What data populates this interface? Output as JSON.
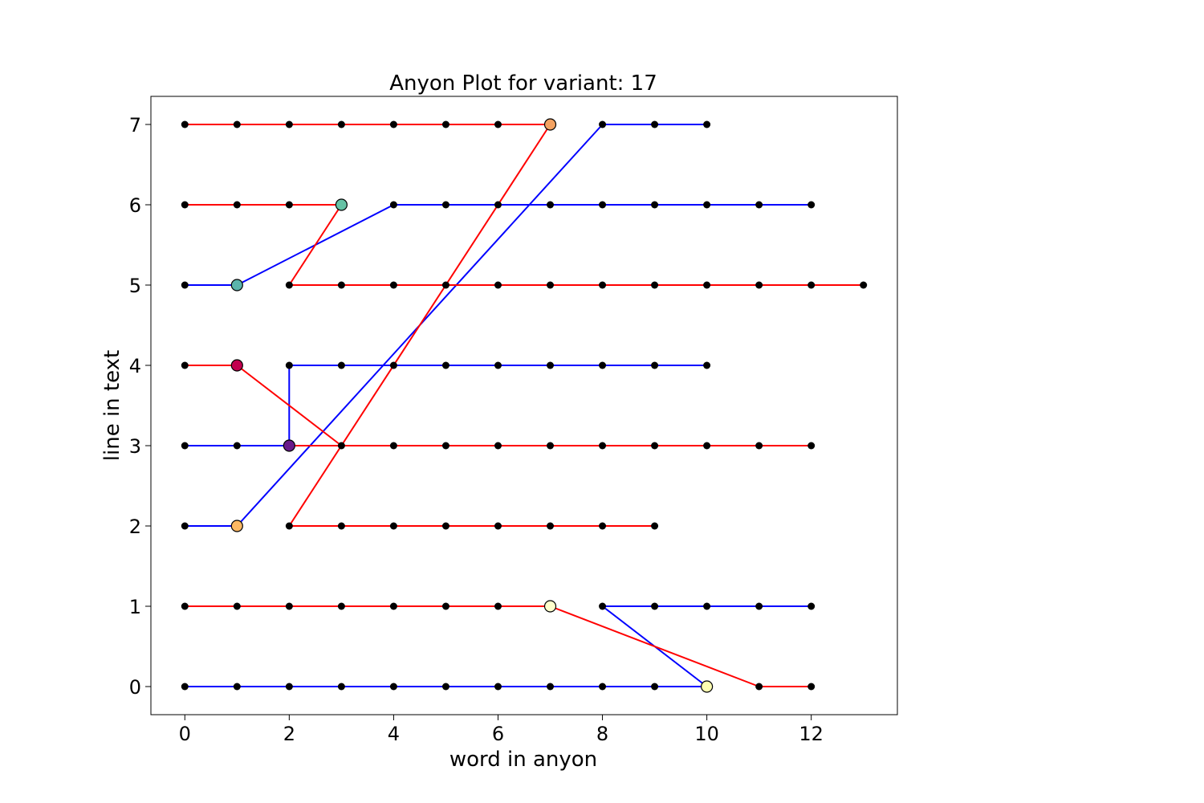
{
  "chart_data": {
    "type": "line",
    "title": "Anyon Plot for variant: 17",
    "xlabel": "word in anyon",
    "ylabel": "line in text",
    "xlim": [
      -0.65,
      13.65
    ],
    "ylim": [
      7.35,
      -0.35
    ],
    "y_inverted": true,
    "grid": false,
    "x_ticks": [
      0,
      2,
      4,
      6,
      8,
      10,
      12
    ],
    "y_ticks": [
      0,
      1,
      2,
      3,
      4,
      5,
      6,
      7
    ],
    "colors": {
      "blue": "#0000ff",
      "red": "#ff0000",
      "point": "#000000",
      "frame": "#000000"
    },
    "series": [
      {
        "color": "blue",
        "points": [
          [
            0,
            0
          ],
          [
            1,
            0
          ],
          [
            2,
            0
          ],
          [
            3,
            0
          ],
          [
            4,
            0
          ],
          [
            5,
            0
          ],
          [
            6,
            0
          ],
          [
            7,
            0
          ],
          [
            8,
            0
          ],
          [
            9,
            0
          ],
          [
            10,
            0
          ],
          [
            8,
            1
          ],
          [
            9,
            1
          ],
          [
            10,
            1
          ],
          [
            11,
            1
          ],
          [
            12,
            1
          ]
        ]
      },
      {
        "color": "red",
        "points": [
          [
            0,
            1
          ],
          [
            1,
            1
          ],
          [
            2,
            1
          ],
          [
            3,
            1
          ],
          [
            4,
            1
          ],
          [
            5,
            1
          ],
          [
            6,
            1
          ],
          [
            7,
            1
          ],
          [
            11,
            0
          ],
          [
            12,
            0
          ]
        ]
      },
      {
        "color": "blue",
        "points": [
          [
            0,
            2
          ],
          [
            1,
            2
          ],
          [
            8,
            7
          ],
          [
            9,
            7
          ],
          [
            10,
            7
          ]
        ]
      },
      {
        "color": "red",
        "points": [
          [
            2,
            2
          ],
          [
            3,
            2
          ],
          [
            4,
            2
          ],
          [
            5,
            2
          ],
          [
            6,
            2
          ],
          [
            7,
            2
          ],
          [
            8,
            2
          ],
          [
            9,
            2
          ]
        ]
      },
      {
        "color": "red",
        "points": [
          [
            2,
            2
          ],
          [
            7,
            7
          ]
        ]
      },
      {
        "color": "blue",
        "points": [
          [
            0,
            3
          ],
          [
            1,
            3
          ],
          [
            2,
            3
          ],
          [
            2,
            4
          ],
          [
            3,
            4
          ],
          [
            4,
            4
          ],
          [
            5,
            4
          ],
          [
            6,
            4
          ],
          [
            7,
            4
          ],
          [
            8,
            4
          ],
          [
            9,
            4
          ],
          [
            10,
            4
          ]
        ]
      },
      {
        "color": "red",
        "points": [
          [
            0,
            4
          ],
          [
            1,
            4
          ],
          [
            3,
            3
          ],
          [
            4,
            3
          ],
          [
            5,
            3
          ],
          [
            6,
            3
          ],
          [
            7,
            3
          ],
          [
            8,
            3
          ],
          [
            9,
            3
          ],
          [
            10,
            3
          ],
          [
            11,
            3
          ],
          [
            12,
            3
          ]
        ]
      },
      {
        "color": "red",
        "points": [
          [
            2,
            3
          ],
          [
            3,
            3
          ]
        ]
      },
      {
        "color": "blue",
        "points": [
          [
            0,
            5
          ],
          [
            1,
            5
          ],
          [
            4,
            6
          ],
          [
            5,
            6
          ],
          [
            6,
            6
          ],
          [
            7,
            6
          ],
          [
            8,
            6
          ],
          [
            9,
            6
          ],
          [
            10,
            6
          ],
          [
            11,
            6
          ],
          [
            12,
            6
          ]
        ]
      },
      {
        "color": "red",
        "points": [
          [
            2,
            5
          ],
          [
            3,
            5
          ],
          [
            4,
            5
          ],
          [
            5,
            5
          ],
          [
            6,
            5
          ],
          [
            7,
            5
          ],
          [
            8,
            5
          ],
          [
            9,
            5
          ],
          [
            10,
            5
          ],
          [
            11,
            5
          ],
          [
            12,
            5
          ],
          [
            13,
            5
          ]
        ]
      },
      {
        "color": "red",
        "points": [
          [
            0,
            6
          ],
          [
            1,
            6
          ],
          [
            2,
            6
          ],
          [
            3,
            6
          ],
          [
            2,
            5
          ]
        ]
      },
      {
        "color": "red",
        "points": [
          [
            0,
            7
          ],
          [
            1,
            7
          ],
          [
            2,
            7
          ],
          [
            3,
            7
          ],
          [
            4,
            7
          ],
          [
            5,
            7
          ],
          [
            6,
            7
          ],
          [
            7,
            7
          ]
        ]
      }
    ],
    "points": [
      [
        0,
        0
      ],
      [
        1,
        0
      ],
      [
        2,
        0
      ],
      [
        3,
        0
      ],
      [
        4,
        0
      ],
      [
        5,
        0
      ],
      [
        6,
        0
      ],
      [
        7,
        0
      ],
      [
        8,
        0
      ],
      [
        9,
        0
      ],
      [
        11,
        0
      ],
      [
        12,
        0
      ],
      [
        0,
        1
      ],
      [
        1,
        1
      ],
      [
        2,
        1
      ],
      [
        3,
        1
      ],
      [
        4,
        1
      ],
      [
        5,
        1
      ],
      [
        6,
        1
      ],
      [
        8,
        1
      ],
      [
        9,
        1
      ],
      [
        10,
        1
      ],
      [
        11,
        1
      ],
      [
        12,
        1
      ],
      [
        0,
        2
      ],
      [
        2,
        2
      ],
      [
        3,
        2
      ],
      [
        4,
        2
      ],
      [
        5,
        2
      ],
      [
        6,
        2
      ],
      [
        7,
        2
      ],
      [
        8,
        2
      ],
      [
        9,
        2
      ],
      [
        0,
        3
      ],
      [
        1,
        3
      ],
      [
        3,
        3
      ],
      [
        4,
        3
      ],
      [
        5,
        3
      ],
      [
        6,
        3
      ],
      [
        7,
        3
      ],
      [
        8,
        3
      ],
      [
        9,
        3
      ],
      [
        10,
        3
      ],
      [
        11,
        3
      ],
      [
        12,
        3
      ],
      [
        0,
        4
      ],
      [
        2,
        4
      ],
      [
        3,
        4
      ],
      [
        4,
        4
      ],
      [
        5,
        4
      ],
      [
        6,
        4
      ],
      [
        7,
        4
      ],
      [
        8,
        4
      ],
      [
        9,
        4
      ],
      [
        10,
        4
      ],
      [
        0,
        5
      ],
      [
        2,
        5
      ],
      [
        3,
        5
      ],
      [
        4,
        5
      ],
      [
        5,
        5
      ],
      [
        6,
        5
      ],
      [
        7,
        5
      ],
      [
        8,
        5
      ],
      [
        9,
        5
      ],
      [
        10,
        5
      ],
      [
        11,
        5
      ],
      [
        12,
        5
      ],
      [
        13,
        5
      ],
      [
        0,
        6
      ],
      [
        1,
        6
      ],
      [
        2,
        6
      ],
      [
        4,
        6
      ],
      [
        5,
        6
      ],
      [
        6,
        6
      ],
      [
        7,
        6
      ],
      [
        8,
        6
      ],
      [
        9,
        6
      ],
      [
        10,
        6
      ],
      [
        11,
        6
      ],
      [
        12,
        6
      ],
      [
        0,
        7
      ],
      [
        1,
        7
      ],
      [
        2,
        7
      ],
      [
        3,
        7
      ],
      [
        4,
        7
      ],
      [
        5,
        7
      ],
      [
        6,
        7
      ],
      [
        8,
        7
      ],
      [
        9,
        7
      ],
      [
        10,
        7
      ]
    ],
    "markers": [
      {
        "x": 10,
        "y": 0,
        "color": "#ffffb2"
      },
      {
        "x": 7,
        "y": 1,
        "color": "#ffffcc"
      },
      {
        "x": 1,
        "y": 2,
        "color": "#fdb863"
      },
      {
        "x": 2,
        "y": 3,
        "color": "#6a1b8a"
      },
      {
        "x": 1,
        "y": 4,
        "color": "#c2004f"
      },
      {
        "x": 1,
        "y": 5,
        "color": "#5ab4ac"
      },
      {
        "x": 3,
        "y": 6,
        "color": "#66c2a5"
      },
      {
        "x": 7,
        "y": 7,
        "color": "#f4a261"
      }
    ]
  }
}
